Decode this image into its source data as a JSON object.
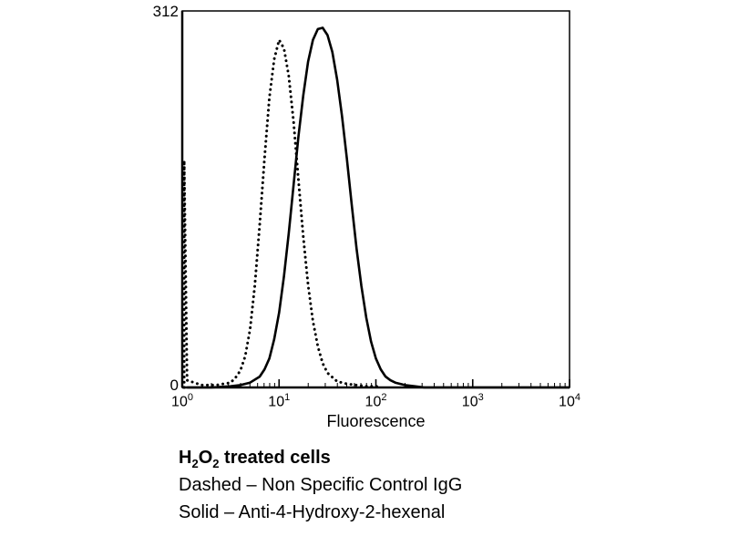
{
  "colors": {
    "curve": "#000000",
    "axis": "#000000",
    "background": "#ffffff"
  },
  "chart_data": {
    "type": "line",
    "subtype": "flow-cytometry-histogram",
    "title": "",
    "xlabel": "Fluorescence",
    "ylabel": "",
    "x_scale": "log10",
    "xlim_log": [
      0,
      4
    ],
    "ylim": [
      0,
      312
    ],
    "y_axis_labels": {
      "top": "312",
      "bottom": "0"
    },
    "x_tick_base": "10",
    "x_tick_exponents": [
      0,
      1,
      2,
      3,
      4
    ],
    "grid": "off",
    "legend_position": "caption-below",
    "series": [
      {
        "name": "Non Specific Control IgG",
        "style": "dashed",
        "peak_x": 10,
        "peak_y": 288,
        "points": [
          [
            0.02,
            0
          ],
          [
            0.02,
            188
          ],
          [
            0.05,
            6
          ],
          [
            0.2,
            2
          ],
          [
            0.35,
            2
          ],
          [
            0.5,
            4
          ],
          [
            0.55,
            8
          ],
          [
            0.6,
            14
          ],
          [
            0.65,
            26
          ],
          [
            0.7,
            48
          ],
          [
            0.75,
            85
          ],
          [
            0.8,
            135
          ],
          [
            0.85,
            190
          ],
          [
            0.9,
            240
          ],
          [
            0.95,
            272
          ],
          [
            1.0,
            288
          ],
          [
            1.05,
            281
          ],
          [
            1.1,
            258
          ],
          [
            1.15,
            220
          ],
          [
            1.2,
            172
          ],
          [
            1.25,
            125
          ],
          [
            1.3,
            85
          ],
          [
            1.35,
            55
          ],
          [
            1.4,
            34
          ],
          [
            1.45,
            20
          ],
          [
            1.5,
            12
          ],
          [
            1.6,
            5
          ],
          [
            1.7,
            3
          ],
          [
            1.8,
            2
          ],
          [
            1.9,
            1
          ],
          [
            2.0,
            1
          ],
          [
            2.05,
            0
          ]
        ]
      },
      {
        "name": "Anti-4-Hydroxy-2-hexenal",
        "style": "solid",
        "peak_x": 28,
        "peak_y": 298,
        "points": [
          [
            0.05,
            0
          ],
          [
            0.3,
            0
          ],
          [
            0.5,
            1
          ],
          [
            0.6,
            2
          ],
          [
            0.7,
            4
          ],
          [
            0.8,
            9
          ],
          [
            0.85,
            15
          ],
          [
            0.9,
            24
          ],
          [
            0.95,
            40
          ],
          [
            1.0,
            62
          ],
          [
            1.05,
            92
          ],
          [
            1.1,
            128
          ],
          [
            1.15,
            168
          ],
          [
            1.2,
            208
          ],
          [
            1.25,
            242
          ],
          [
            1.3,
            270
          ],
          [
            1.35,
            288
          ],
          [
            1.4,
            297
          ],
          [
            1.45,
            298
          ],
          [
            1.5,
            292
          ],
          [
            1.55,
            278
          ],
          [
            1.6,
            255
          ],
          [
            1.65,
            225
          ],
          [
            1.7,
            190
          ],
          [
            1.75,
            152
          ],
          [
            1.8,
            115
          ],
          [
            1.85,
            84
          ],
          [
            1.9,
            58
          ],
          [
            1.95,
            38
          ],
          [
            2.0,
            24
          ],
          [
            2.05,
            15
          ],
          [
            2.1,
            9
          ],
          [
            2.15,
            6
          ],
          [
            2.2,
            4
          ],
          [
            2.3,
            2
          ],
          [
            2.4,
            1
          ],
          [
            2.5,
            0
          ],
          [
            3.0,
            0
          ],
          [
            4.0,
            0
          ]
        ]
      }
    ]
  },
  "caption": {
    "line1": {
      "h": "H",
      "sub1": "2",
      "o": "O",
      "sub2": "2",
      "rest": " treated cells"
    },
    "line2": "Dashed – Non Specific Control IgG",
    "line3": "Solid – Anti-4-Hydroxy-2-hexenal"
  }
}
